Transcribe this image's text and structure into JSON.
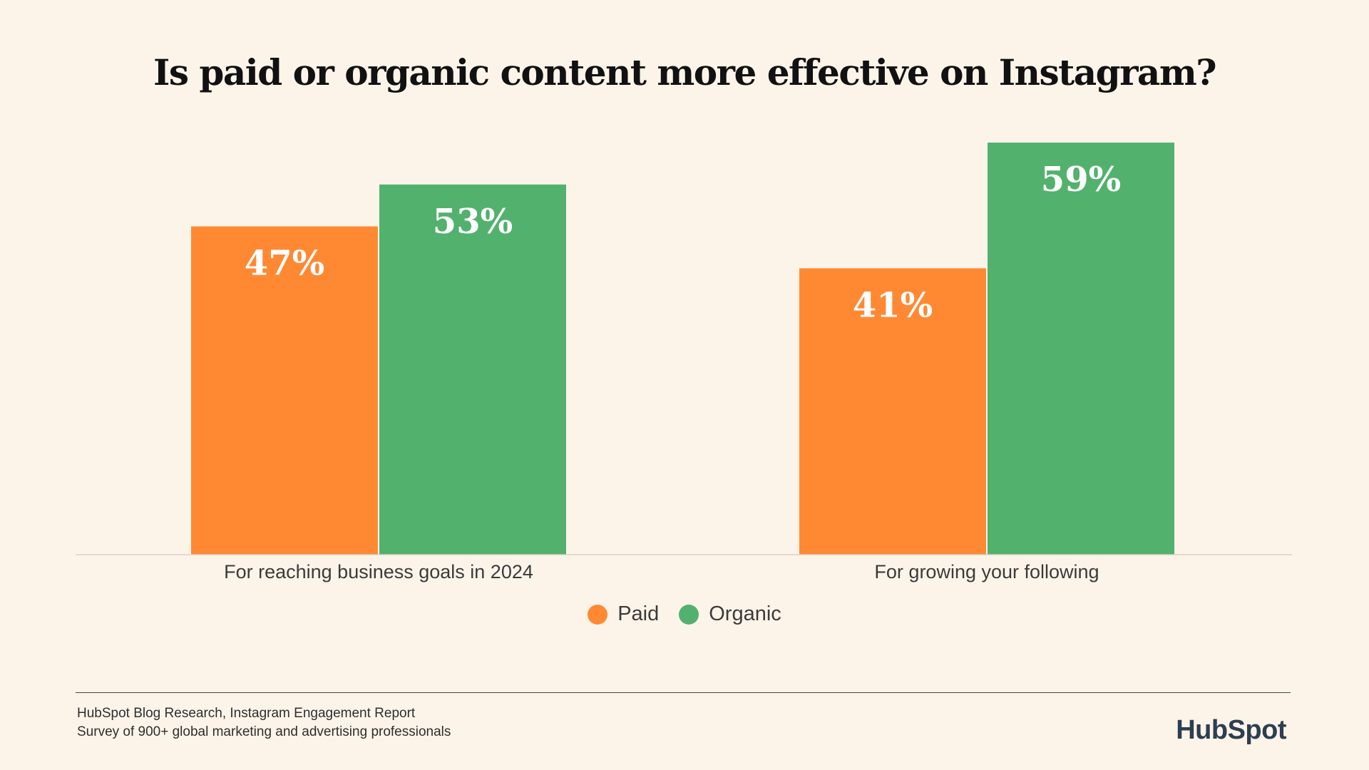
{
  "chart_data": {
    "type": "bar",
    "title": "Is paid or organic content more effective on Instagram?",
    "categories": [
      "For reaching business goals in 2024",
      "For growing your following"
    ],
    "series": [
      {
        "name": "Paid",
        "values": [
          47,
          41
        ],
        "labels": [
          "47%",
          "41%"
        ],
        "color": "#ff8933"
      },
      {
        "name": "Organic",
        "values": [
          53,
          59
        ],
        "labels": [
          "53%",
          "59%"
        ],
        "color": "#52b16d"
      }
    ],
    "xlabel": "",
    "ylabel": "",
    "ylim": [
      0,
      59
    ],
    "grid": false,
    "legend": "bottom-center"
  },
  "legend": {
    "paid": {
      "label": "Paid",
      "color": "#ff8933"
    },
    "organic": {
      "label": "Organic",
      "color": "#52b16d"
    }
  },
  "footer": {
    "source_line1": "HubSpot Blog Research, Instagram Engagement Report",
    "source_line2": "Survey of 900+ global marketing and advertising professionals",
    "logo_text": "HubSpot"
  }
}
